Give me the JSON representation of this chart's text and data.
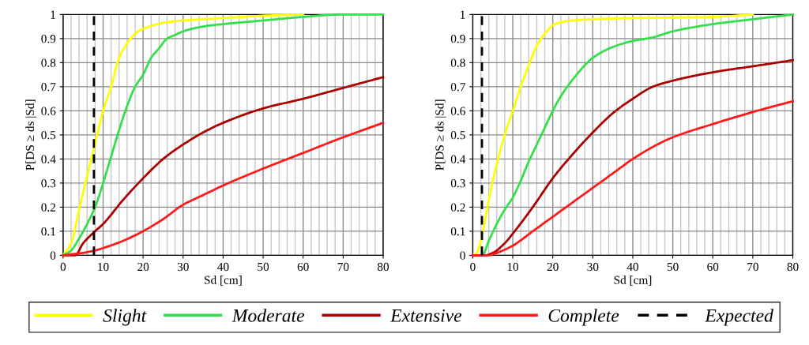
{
  "chart_data": [
    {
      "type": "line",
      "xlabel": "Sd [cm]",
      "ylabel": "P[DS ≥ ds |Sd]",
      "xlim": [
        0,
        80
      ],
      "ylim": [
        0,
        1
      ],
      "xticks": [
        0,
        {
          "value": 2,
          "label": null
        },
        {
          "value": 4,
          "label": null
        },
        {
          "value": 6,
          "label": null
        },
        {
          "value": 8,
          "label": null
        },
        10,
        {
          "value": 12,
          "label": null
        },
        {
          "value": 14,
          "label": null
        },
        {
          "value": 16,
          "label": null
        },
        {
          "value": 18,
          "label": null
        },
        20,
        {
          "value": 22,
          "label": null
        },
        {
          "value": 24,
          "label": null
        },
        {
          "value": 26,
          "label": null
        },
        {
          "value": 28,
          "label": null
        },
        30,
        {
          "value": 32,
          "label": null
        },
        {
          "value": 34,
          "label": null
        },
        {
          "value": 36,
          "label": null
        },
        {
          "value": 38,
          "label": null
        },
        40,
        {
          "value": 42,
          "label": null
        },
        {
          "value": 44,
          "label": null
        },
        {
          "value": 46,
          "label": null
        },
        {
          "value": 48,
          "label": null
        },
        50,
        {
          "value": 52,
          "label": null
        },
        {
          "value": 54,
          "label": null
        },
        {
          "value": 56,
          "label": null
        },
        {
          "value": 58,
          "label": null
        },
        60,
        {
          "value": 62,
          "label": null
        },
        {
          "value": 64,
          "label": null
        },
        {
          "value": 66,
          "label": null
        },
        {
          "value": 68,
          "label": null
        },
        70,
        {
          "value": 72,
          "label": null
        },
        {
          "value": 74,
          "label": null
        },
        {
          "value": 76,
          "label": null
        },
        {
          "value": 78,
          "label": null
        },
        80
      ],
      "yticks": [
        0,
        0.1,
        0.2,
        0.3,
        0.4,
        0.5,
        0.6,
        0.7,
        0.8,
        0.9,
        1
      ],
      "grid": true,
      "legend": "bottom",
      "line_style": "solid",
      "marker": "none",
      "series": [
        {
          "name": "Slight",
          "color": "#ffff00",
          "x": [
            0,
            2,
            4,
            6,
            7.8,
            10,
            12,
            14,
            16,
            18,
            20,
            25,
            30,
            40,
            50,
            60
          ],
          "values": [
            0,
            0.05,
            0.19,
            0.33,
            0.45,
            0.6,
            0.7,
            0.82,
            0.88,
            0.92,
            0.94,
            0.965,
            0.975,
            0.985,
            0.995,
            1
          ]
        },
        {
          "name": "Moderate",
          "color": "#33e04a",
          "x": [
            0,
            2,
            4,
            6,
            8,
            10,
            12,
            14,
            16,
            18,
            20,
            22,
            24,
            26,
            28,
            30,
            35,
            40,
            50,
            60,
            70,
            80
          ],
          "values": [
            0,
            0.02,
            0.07,
            0.13,
            0.2,
            0.3,
            0.41,
            0.52,
            0.62,
            0.7,
            0.75,
            0.82,
            0.86,
            0.9,
            0.915,
            0.93,
            0.95,
            0.96,
            0.975,
            0.99,
            1,
            1
          ]
        },
        {
          "name": "Extensive",
          "color": "#aa0000",
          "x": [
            0,
            3,
            5,
            8,
            10,
            15,
            20,
            25,
            30,
            35,
            40,
            50,
            60,
            70,
            80
          ],
          "values": [
            0,
            0,
            0.05,
            0.1,
            0.13,
            0.23,
            0.32,
            0.4,
            0.46,
            0.51,
            0.55,
            0.61,
            0.65,
            0.695,
            0.74
          ]
        },
        {
          "name": "Complete",
          "color": "#ff1a1a",
          "x": [
            0,
            5,
            8,
            10,
            15,
            20,
            25,
            30,
            35,
            40,
            50,
            60,
            70,
            80
          ],
          "values": [
            0,
            0.01,
            0.02,
            0.03,
            0.06,
            0.1,
            0.15,
            0.21,
            0.25,
            0.29,
            0.36,
            0.425,
            0.49,
            0.55
          ]
        },
        {
          "name": "Expected",
          "color": "#000000",
          "line_style": "dashed",
          "x": [
            7.7,
            7.7
          ],
          "values": [
            0,
            1
          ]
        }
      ]
    },
    {
      "type": "line",
      "xlabel": "Sd [cm]",
      "ylabel": "P[DS ≥ ds |Sd]",
      "xlim": [
        0,
        80
      ],
      "ylim": [
        0,
        1
      ],
      "xticks": [
        0,
        {
          "value": 2,
          "label": null
        },
        {
          "value": 4,
          "label": null
        },
        {
          "value": 6,
          "label": null
        },
        {
          "value": 8,
          "label": null
        },
        10,
        {
          "value": 12,
          "label": null
        },
        {
          "value": 14,
          "label": null
        },
        {
          "value": 16,
          "label": null
        },
        {
          "value": 18,
          "label": null
        },
        20,
        {
          "value": 22,
          "label": null
        },
        {
          "value": 24,
          "label": null
        },
        {
          "value": 26,
          "label": null
        },
        {
          "value": 28,
          "label": null
        },
        30,
        {
          "value": 32,
          "label": null
        },
        {
          "value": 34,
          "label": null
        },
        {
          "value": 36,
          "label": null
        },
        {
          "value": 38,
          "label": null
        },
        40,
        {
          "value": 42,
          "label": null
        },
        {
          "value": 44,
          "label": null
        },
        {
          "value": 46,
          "label": null
        },
        {
          "value": 48,
          "label": null
        },
        50,
        {
          "value": 52,
          "label": null
        },
        {
          "value": 54,
          "label": null
        },
        {
          "value": 56,
          "label": null
        },
        {
          "value": 58,
          "label": null
        },
        60,
        {
          "value": 62,
          "label": null
        },
        {
          "value": 64,
          "label": null
        },
        {
          "value": 66,
          "label": null
        },
        {
          "value": 68,
          "label": null
        },
        70,
        {
          "value": 72,
          "label": null
        },
        {
          "value": 74,
          "label": null
        },
        {
          "value": 76,
          "label": null
        },
        {
          "value": 78,
          "label": null
        },
        80
      ],
      "yticks": [
        0,
        0.1,
        0.2,
        0.3,
        0.4,
        0.5,
        0.6,
        0.7,
        0.8,
        0.9,
        1
      ],
      "grid": true,
      "line_style": "solid",
      "marker": "none",
      "series": [
        {
          "color": "#ffff00",
          "x": [
            0,
            1,
            2,
            3,
            4,
            6,
            8,
            10,
            12,
            14,
            16,
            18,
            20,
            22,
            25,
            30,
            40,
            60,
            70
          ],
          "values": [
            0,
            0.01,
            0.06,
            0.14,
            0.23,
            0.38,
            0.5,
            0.6,
            0.7,
            0.79,
            0.87,
            0.92,
            0.955,
            0.968,
            0.975,
            0.98,
            0.985,
            0.99,
            1
          ]
        },
        {
          "color": "#33e04a",
          "x": [
            0,
            2.4,
            4,
            6,
            8,
            10,
            12,
            14,
            16,
            18,
            20,
            22,
            25,
            30,
            35,
            40,
            45,
            50,
            60,
            70,
            80
          ],
          "values": [
            0,
            0,
            0.06,
            0.13,
            0.19,
            0.24,
            0.31,
            0.39,
            0.46,
            0.53,
            0.6,
            0.66,
            0.73,
            0.82,
            0.865,
            0.89,
            0.905,
            0.93,
            0.96,
            0.98,
            1
          ]
        },
        {
          "color": "#aa0000",
          "x": [
            0,
            3,
            5,
            8,
            10,
            15,
            20,
            25,
            30,
            35,
            40,
            45,
            50,
            60,
            70,
            80
          ],
          "values": [
            0,
            0,
            0.01,
            0.05,
            0.09,
            0.2,
            0.32,
            0.42,
            0.51,
            0.59,
            0.65,
            0.7,
            0.725,
            0.76,
            0.785,
            0.81
          ]
        },
        {
          "color": "#ff1a1a",
          "x": [
            0,
            4,
            6,
            10,
            15,
            20,
            25,
            30,
            35,
            40,
            45,
            50,
            60,
            70,
            80
          ],
          "values": [
            0,
            0,
            0.01,
            0.04,
            0.1,
            0.16,
            0.22,
            0.28,
            0.34,
            0.4,
            0.45,
            0.49,
            0.545,
            0.595,
            0.64
          ]
        },
        {
          "color": "#000000",
          "line_style": "dashed",
          "x": [
            2.3,
            2.3
          ],
          "values": [
            0,
            1
          ]
        }
      ]
    }
  ]
}
